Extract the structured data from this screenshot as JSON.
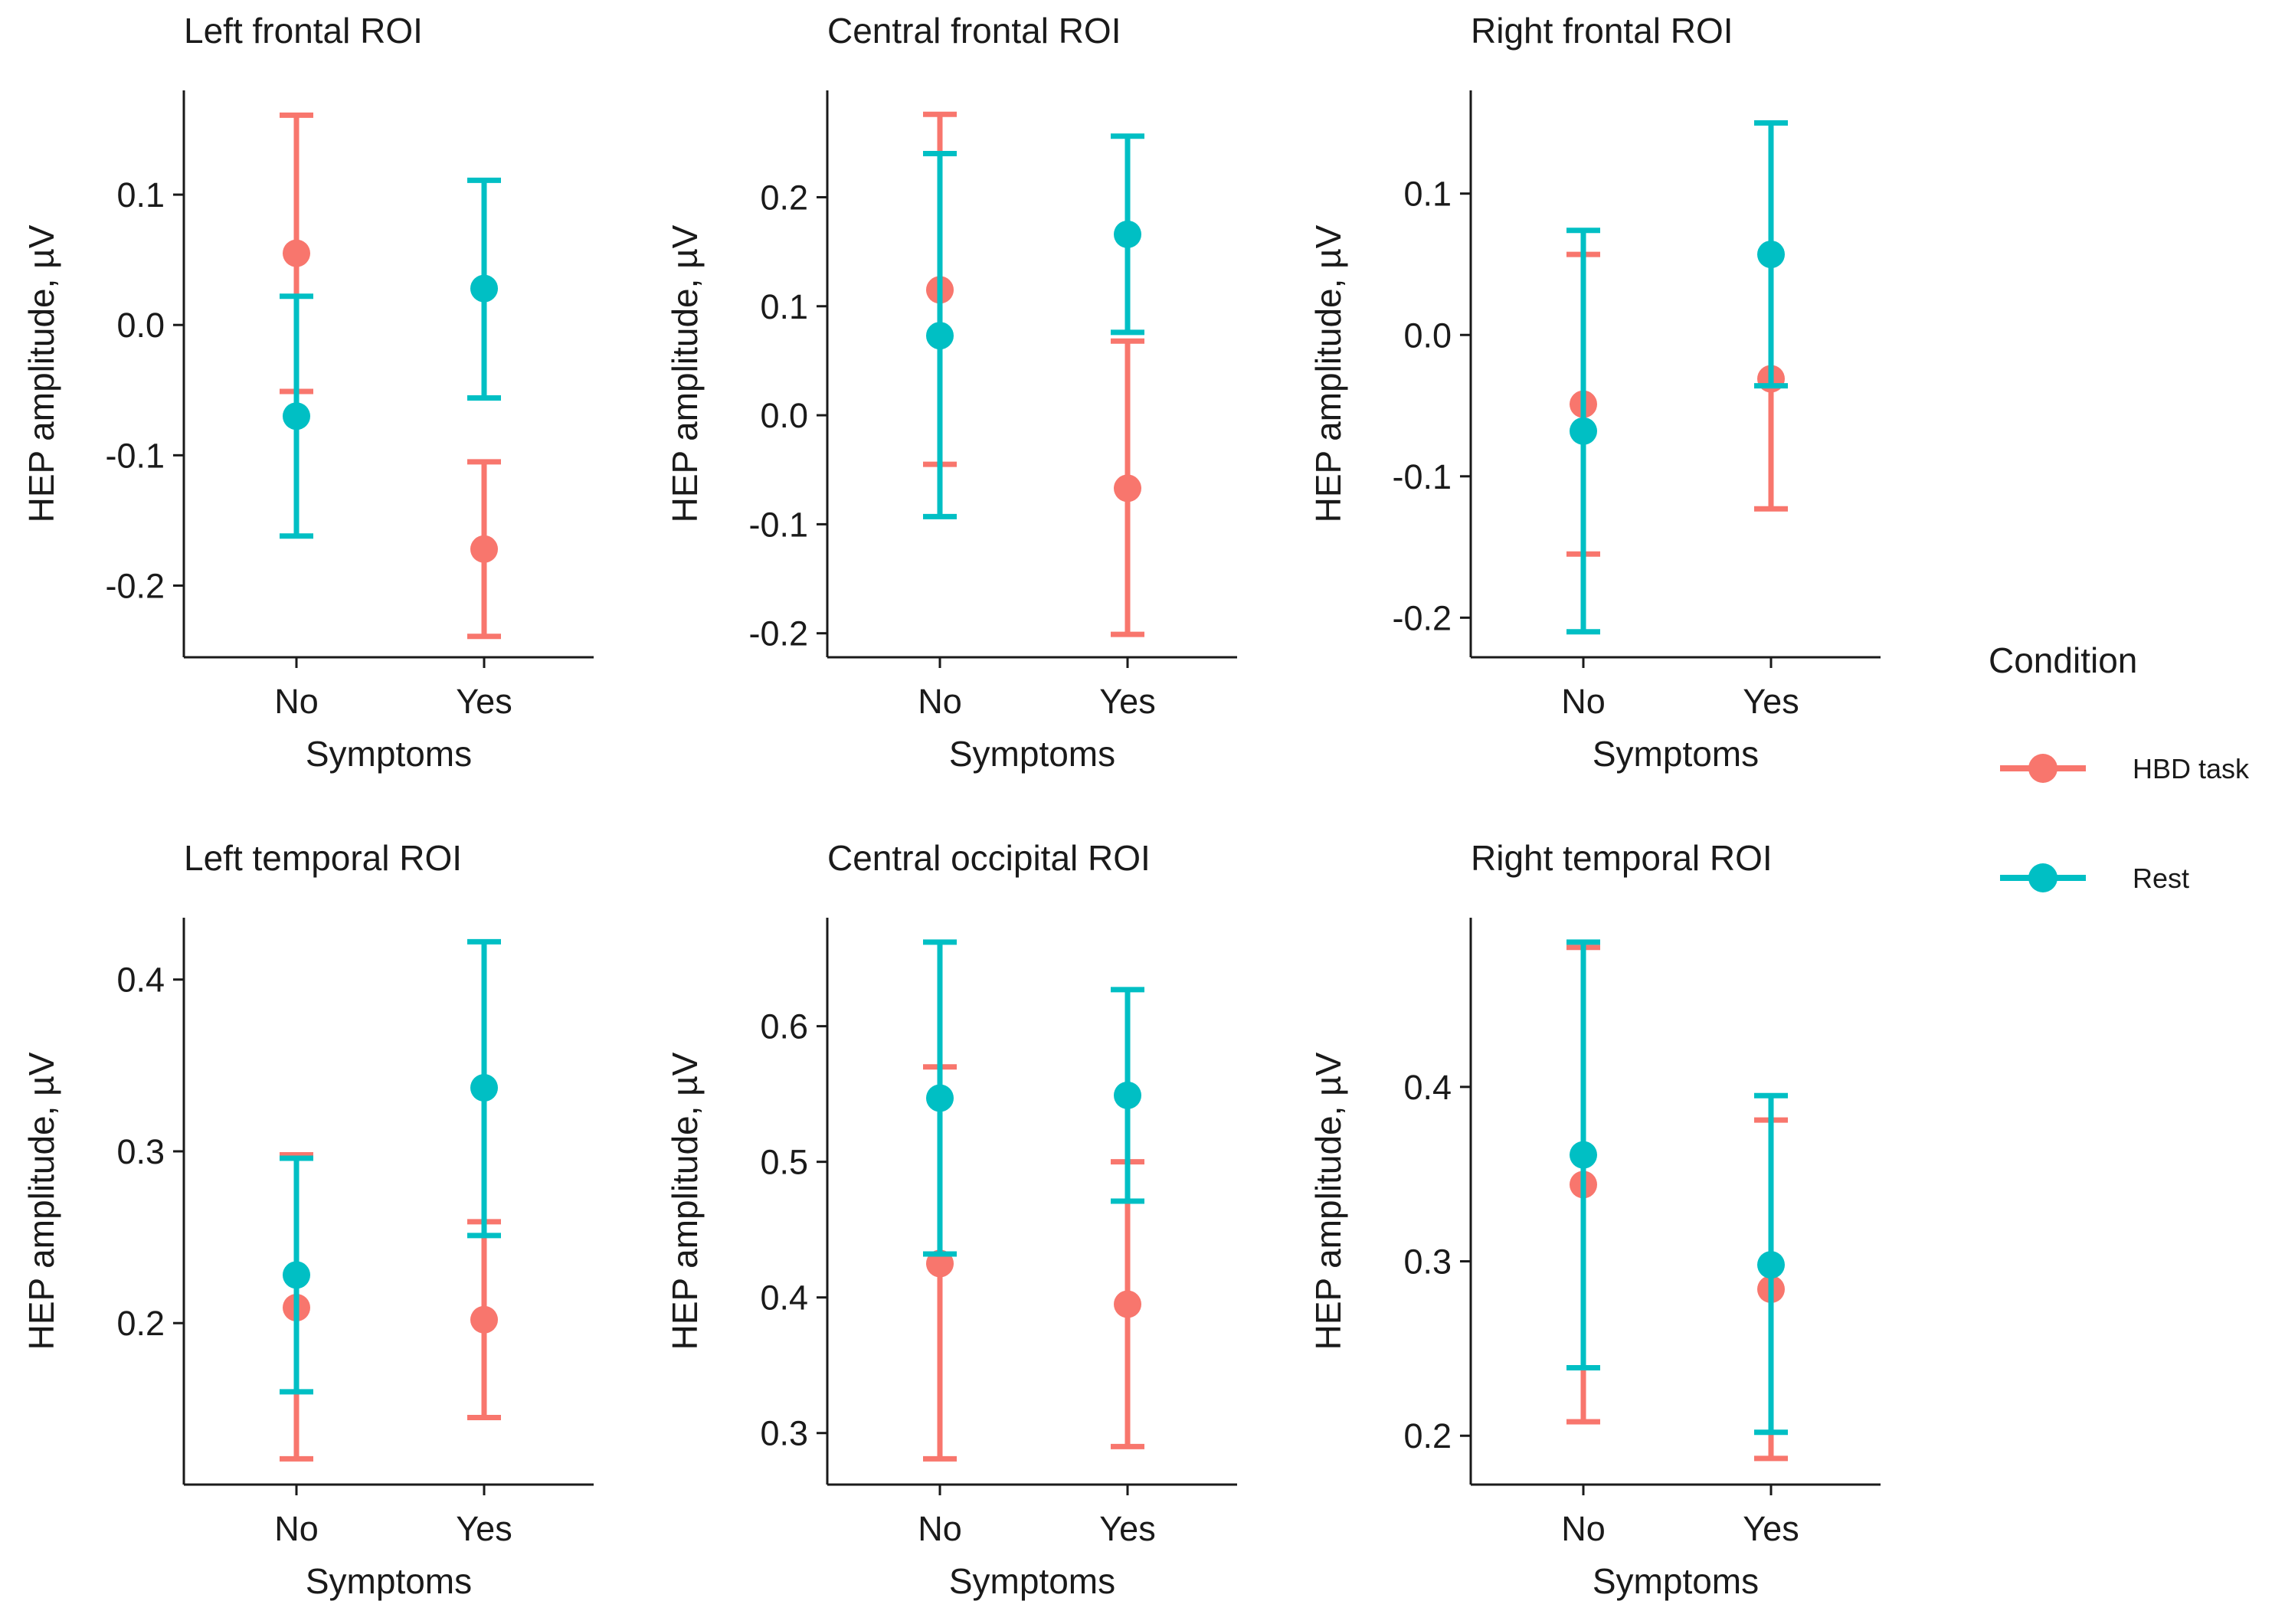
{
  "legend": {
    "title": "Condition",
    "items": [
      {
        "label": "HBD task",
        "color": "#F8766D"
      },
      {
        "label": "Rest",
        "color": "#00BFC4"
      }
    ]
  },
  "chart_data": [
    {
      "type": "errorbar",
      "title": "Left frontal ROI",
      "xlabel": "Symptoms",
      "ylabel": "HEP amplitude, µV",
      "categories": [
        "No",
        "Yes"
      ],
      "ylim": [
        -0.255,
        0.18
      ],
      "yticks": [
        0.1,
        0.0,
        -0.1,
        -0.2
      ],
      "yticklabels": [
        "0.1",
        "0.0",
        "-0.1",
        "-0.2"
      ],
      "series": [
        {
          "name": "HBD task",
          "values": [
            0.055,
            -0.172
          ],
          "lower": [
            -0.051,
            -0.239
          ],
          "upper": [
            0.161,
            -0.105
          ]
        },
        {
          "name": "Rest",
          "values": [
            -0.07,
            0.028
          ],
          "lower": [
            -0.162,
            -0.056
          ],
          "upper": [
            0.022,
            0.111
          ]
        }
      ]
    },
    {
      "type": "errorbar",
      "title": "Central frontal ROI",
      "xlabel": "Symptoms",
      "ylabel": "HEP amplitude, µV",
      "categories": [
        "No",
        "Yes"
      ],
      "ylim": [
        -0.222,
        0.298
      ],
      "yticks": [
        0.2,
        0.1,
        0.0,
        -0.1,
        -0.2
      ],
      "yticklabels": [
        "0.2",
        "0.1",
        "0.0",
        "-0.1",
        "-0.2"
      ],
      "series": [
        {
          "name": "HBD task",
          "values": [
            0.115,
            -0.067
          ],
          "lower": [
            -0.045,
            -0.201
          ],
          "upper": [
            0.276,
            0.068
          ]
        },
        {
          "name": "Rest",
          "values": [
            0.073,
            0.166
          ],
          "lower": [
            -0.093,
            0.076
          ],
          "upper": [
            0.24,
            0.256
          ]
        }
      ]
    },
    {
      "type": "errorbar",
      "title": "Right frontal ROI",
      "xlabel": "Symptoms",
      "ylabel": "HEP amplitude, µV",
      "categories": [
        "No",
        "Yes"
      ],
      "ylim": [
        -0.228,
        0.173
      ],
      "yticks": [
        0.1,
        0.0,
        -0.1,
        -0.2
      ],
      "yticklabels": [
        "0.1",
        "0.0",
        "-0.1",
        "-0.2"
      ],
      "series": [
        {
          "name": "HBD task",
          "values": [
            -0.049,
            -0.031
          ],
          "lower": [
            -0.155,
            -0.123
          ],
          "upper": [
            0.057,
            0.15
          ]
        },
        {
          "name": "Rest",
          "values": [
            -0.068,
            0.057
          ],
          "lower": [
            -0.21,
            -0.036
          ],
          "upper": [
            0.074,
            0.15
          ]
        }
      ]
    },
    {
      "type": "errorbar",
      "title": "Left temporal ROI",
      "xlabel": "Symptoms",
      "ylabel": "HEP amplitude, µV",
      "categories": [
        "No",
        "Yes"
      ],
      "ylim": [
        0.106,
        0.436
      ],
      "yticks": [
        0.4,
        0.3,
        0.2
      ],
      "yticklabels": [
        "0.4",
        "0.3",
        "0.2"
      ],
      "series": [
        {
          "name": "HBD task",
          "values": [
            0.209,
            0.202
          ],
          "lower": [
            0.121,
            0.145
          ],
          "upper": [
            0.298,
            0.259
          ]
        },
        {
          "name": "Rest",
          "values": [
            0.228,
            0.337
          ],
          "lower": [
            0.16,
            0.251
          ],
          "upper": [
            0.296,
            0.422
          ]
        }
      ]
    },
    {
      "type": "errorbar",
      "title": "Central occipital ROI",
      "xlabel": "Symptoms",
      "ylabel": "HEP amplitude, µV",
      "categories": [
        "No",
        "Yes"
      ],
      "ylim": [
        0.262,
        0.68
      ],
      "yticks": [
        0.6,
        0.5,
        0.4,
        0.3
      ],
      "yticklabels": [
        "0.6",
        "0.5",
        "0.4",
        "0.3"
      ],
      "series": [
        {
          "name": "HBD task",
          "values": [
            0.425,
            0.395
          ],
          "lower": [
            0.281,
            0.29
          ],
          "upper": [
            0.57,
            0.5
          ]
        },
        {
          "name": "Rest",
          "values": [
            0.547,
            0.549
          ],
          "lower": [
            0.432,
            0.471
          ],
          "upper": [
            0.662,
            0.627
          ]
        }
      ]
    },
    {
      "type": "errorbar",
      "title": "Right temporal ROI",
      "xlabel": "Symptoms",
      "ylabel": "HEP amplitude, µV",
      "categories": [
        "No",
        "Yes"
      ],
      "ylim": [
        0.172,
        0.497
      ],
      "yticks": [
        0.4,
        0.3,
        0.2
      ],
      "yticklabels": [
        "0.4",
        "0.3",
        "0.2"
      ],
      "series": [
        {
          "name": "HBD task",
          "values": [
            0.344,
            0.284
          ],
          "lower": [
            0.208,
            0.187
          ],
          "upper": [
            0.48,
            0.381
          ]
        },
        {
          "name": "Rest",
          "values": [
            0.361,
            0.298
          ],
          "lower": [
            0.239,
            0.202
          ],
          "upper": [
            0.483,
            0.395
          ]
        }
      ]
    }
  ]
}
